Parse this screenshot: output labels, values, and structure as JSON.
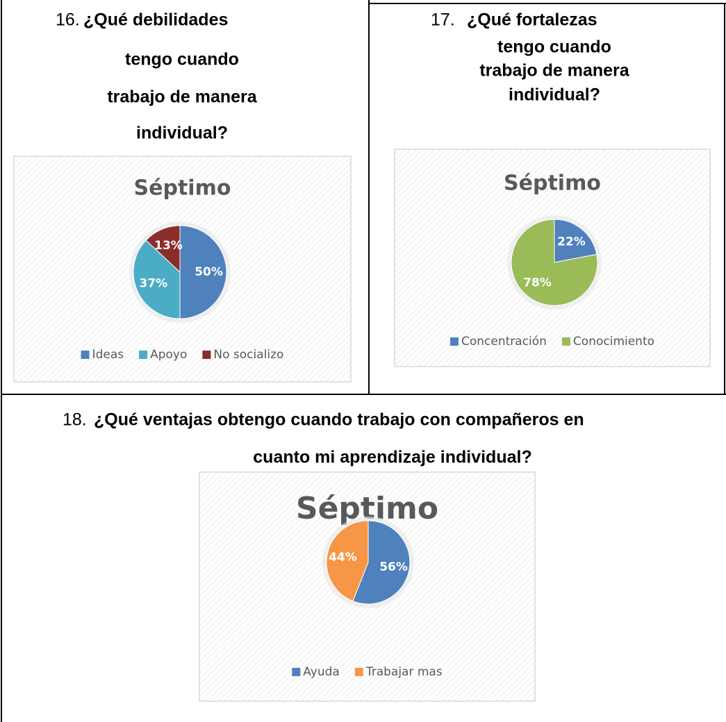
{
  "questions": [
    {
      "number": "16.",
      "lines": [
        "¿Qué debilidades",
        "tengo cuando",
        "trabajo de manera",
        "individual?"
      ]
    },
    {
      "number": "17.",
      "lines": [
        "¿Qué fortalezas",
        "tengo cuando",
        "trabajo de manera",
        "individual?"
      ]
    },
    {
      "number": "18.",
      "lines": [
        "¿Qué ventajas obtengo cuando trabajo con compañeros en",
        "cuanto mi aprendizaje individual?"
      ]
    }
  ],
  "chart_data": [
    {
      "type": "pie",
      "title": "Séptimo",
      "categories": [
        "Ideas",
        "Apoyo",
        "No socializo"
      ],
      "values": [
        50,
        37,
        13
      ],
      "value_labels": [
        "50%",
        "37%",
        "13%"
      ],
      "colors": [
        "#4f81bd",
        "#4bacc6",
        "#8b2e2b"
      ],
      "legend": "bottom"
    },
    {
      "type": "pie",
      "title": "Séptimo",
      "categories": [
        "Concentración",
        "Conocimiento"
      ],
      "values": [
        22,
        78
      ],
      "value_labels": [
        "22%",
        "78%"
      ],
      "colors": [
        "#4f81bd",
        "#9bbb59"
      ],
      "legend": "bottom"
    },
    {
      "type": "pie",
      "title": "Séptimo",
      "categories": [
        "Ayuda",
        "Trabajar mas"
      ],
      "values": [
        56,
        44
      ],
      "value_labels": [
        "56%",
        "44%"
      ],
      "colors": [
        "#4f81bd",
        "#f79646"
      ],
      "legend": "bottom"
    }
  ]
}
